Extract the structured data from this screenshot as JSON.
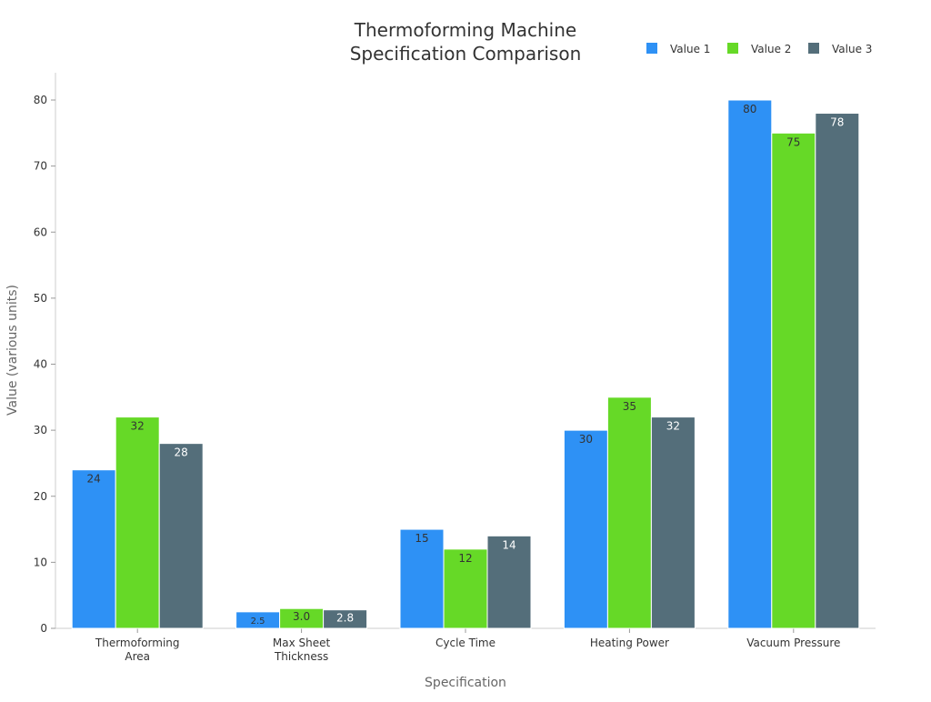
{
  "chart_data": {
    "type": "bar",
    "title": [
      "Thermoforming Machine",
      "Specification Comparison"
    ],
    "xlabel": "Specification",
    "ylabel": "Value (various units)",
    "categories": [
      [
        "Thermoforming",
        "Area"
      ],
      [
        "Max Sheet",
        "Thickness"
      ],
      [
        "Cycle Time"
      ],
      [
        "Heating Power"
      ],
      [
        "Vacuum Pressure"
      ]
    ],
    "series": [
      {
        "name": "Value 1",
        "color": "#2e91f5",
        "label_color": "#333333",
        "values": [
          24,
          2.5,
          15,
          30,
          80
        ],
        "labels": [
          "24",
          "2.5",
          "15",
          "30",
          "80"
        ]
      },
      {
        "name": "Value 2",
        "color": "#66d927",
        "label_color": "#333333",
        "values": [
          32,
          3.0,
          12,
          35,
          75
        ],
        "labels": [
          "32",
          "3.0",
          "12",
          "35",
          "75"
        ]
      },
      {
        "name": "Value 3",
        "color": "#546e7a",
        "label_color": "#ffffff",
        "values": [
          28,
          2.8,
          14,
          32,
          78
        ],
        "labels": [
          "28",
          "2.8",
          "14",
          "32",
          "78"
        ]
      }
    ],
    "yticks": [
      0,
      10,
      20,
      30,
      40,
      50,
      60,
      70,
      80
    ],
    "ylim": [
      0,
      84
    ],
    "grid": false,
    "legend": "top-right"
  }
}
